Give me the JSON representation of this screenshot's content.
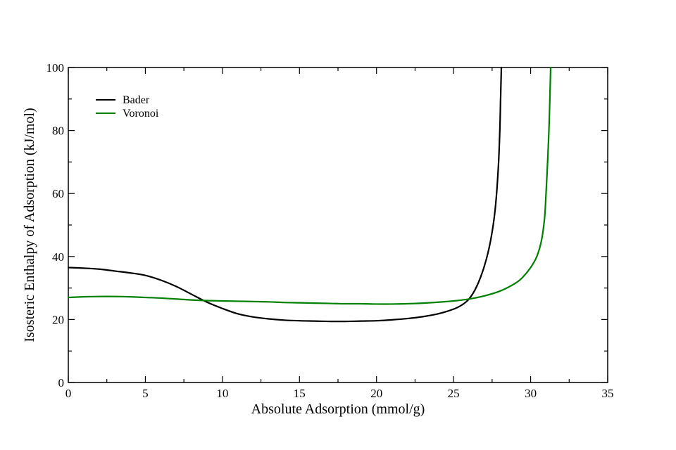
{
  "chart_data": {
    "type": "line",
    "xlabel": "Absolute Adsorption (mmol/g)",
    "ylabel": "Isosteric Enthalpy of Adsorption (kJ/mol)",
    "xlim": [
      0,
      35
    ],
    "ylim": [
      0,
      100
    ],
    "x_ticks": [
      "0",
      "5",
      "10",
      "15",
      "20",
      "25",
      "30",
      "35"
    ],
    "y_ticks": [
      "0",
      "20",
      "40",
      "60",
      "80",
      "100"
    ],
    "grid": false,
    "legend_position": "top-left",
    "series": [
      {
        "name": "Bader",
        "color": "#000000",
        "points": [
          [
            0,
            36.5
          ],
          [
            1,
            36.3
          ],
          [
            2,
            36.0
          ],
          [
            3,
            35.4
          ],
          [
            4,
            34.8
          ],
          [
            5,
            34.0
          ],
          [
            6,
            32.5
          ],
          [
            7,
            30.5
          ],
          [
            8,
            28.0
          ],
          [
            9,
            25.5
          ],
          [
            10,
            23.5
          ],
          [
            11,
            21.8
          ],
          [
            12,
            20.8
          ],
          [
            13,
            20.2
          ],
          [
            14,
            19.8
          ],
          [
            15,
            19.6
          ],
          [
            16,
            19.5
          ],
          [
            17,
            19.4
          ],
          [
            18,
            19.4
          ],
          [
            19,
            19.5
          ],
          [
            20,
            19.6
          ],
          [
            21,
            19.9
          ],
          [
            22,
            20.3
          ],
          [
            23,
            20.9
          ],
          [
            24,
            21.8
          ],
          [
            25,
            23.3
          ],
          [
            25.5,
            24.5
          ],
          [
            26,
            26.5
          ],
          [
            26.5,
            30.5
          ],
          [
            27,
            37.0
          ],
          [
            27.4,
            45.0
          ],
          [
            27.7,
            55.0
          ],
          [
            27.9,
            68.0
          ],
          [
            28.0,
            80.0
          ],
          [
            28.05,
            90.0
          ],
          [
            28.1,
            100.0
          ]
        ]
      },
      {
        "name": "Voronoi",
        "color": "#008000",
        "points": [
          [
            0,
            27.0
          ],
          [
            1,
            27.2
          ],
          [
            2,
            27.3
          ],
          [
            3,
            27.3
          ],
          [
            4,
            27.2
          ],
          [
            5,
            27.0
          ],
          [
            6,
            26.8
          ],
          [
            7,
            26.5
          ],
          [
            8,
            26.2
          ],
          [
            9,
            26.0
          ],
          [
            10,
            25.9
          ],
          [
            11,
            25.8
          ],
          [
            12,
            25.7
          ],
          [
            13,
            25.6
          ],
          [
            14,
            25.4
          ],
          [
            15,
            25.3
          ],
          [
            16,
            25.2
          ],
          [
            17,
            25.1
          ],
          [
            18,
            25.0
          ],
          [
            19,
            25.0
          ],
          [
            20,
            24.9
          ],
          [
            21,
            24.9
          ],
          [
            22,
            25.0
          ],
          [
            23,
            25.2
          ],
          [
            24,
            25.5
          ],
          [
            25,
            25.9
          ],
          [
            26,
            26.5
          ],
          [
            27,
            27.5
          ],
          [
            28,
            29.0
          ],
          [
            29,
            31.5
          ],
          [
            29.5,
            33.5
          ],
          [
            30,
            36.5
          ],
          [
            30.4,
            40.0
          ],
          [
            30.7,
            45.0
          ],
          [
            30.9,
            52.0
          ],
          [
            31.0,
            60.0
          ],
          [
            31.1,
            70.0
          ],
          [
            31.2,
            82.0
          ],
          [
            31.3,
            100.0
          ]
        ]
      }
    ]
  }
}
